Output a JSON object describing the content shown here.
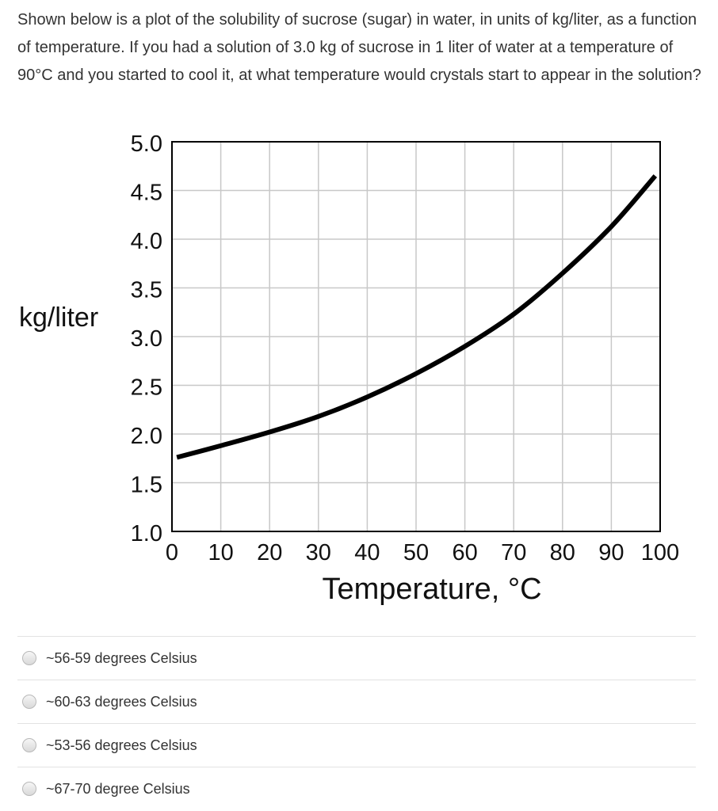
{
  "question": {
    "text": "Shown below is a plot of the solubility of sucrose (sugar) in water, in units of kg/liter, as a function of temperature. If you had a solution of 3.0 kg of sucrose in 1 liter of water at a temperature of 90°C and you started to cool it, at what temperature would crystals start to appear in the solution?"
  },
  "chart_data": {
    "type": "line",
    "title": "",
    "xlabel": "Temperature, °C",
    "ylabel": "kg/liter",
    "xlim": [
      0,
      100
    ],
    "ylim": [
      1.0,
      5.0
    ],
    "x_ticks": [
      "0",
      "10",
      "20",
      "30",
      "40",
      "50",
      "60",
      "70",
      "80",
      "90",
      "100"
    ],
    "y_ticks": [
      "1.0",
      "1.5",
      "2.0",
      "2.5",
      "3.0",
      "3.5",
      "4.0",
      "4.5",
      "5.0"
    ],
    "x_tick_values": [
      0,
      10,
      20,
      30,
      40,
      50,
      60,
      70,
      80,
      90,
      100
    ],
    "y_tick_values": [
      1.0,
      1.5,
      2.0,
      2.5,
      3.0,
      3.5,
      4.0,
      4.5,
      5.0
    ],
    "grid": true,
    "series": [
      {
        "x": [
          1,
          10,
          20,
          30,
          40,
          50,
          60,
          70,
          80,
          90,
          99
        ],
        "y": [
          1.76,
          1.88,
          2.02,
          2.18,
          2.38,
          2.62,
          2.9,
          3.23,
          3.65,
          4.13,
          4.65
        ]
      }
    ],
    "colors": {
      "line": "#000000",
      "grid": "#c8c8c8",
      "frame": "#000000"
    }
  },
  "answers": [
    {
      "label": "~56-59 degrees Celsius"
    },
    {
      "label": "~60-63 degrees Celsius"
    },
    {
      "label": "~53-56 degrees Celsius"
    },
    {
      "label": "~67-70 degree Celsius"
    }
  ]
}
